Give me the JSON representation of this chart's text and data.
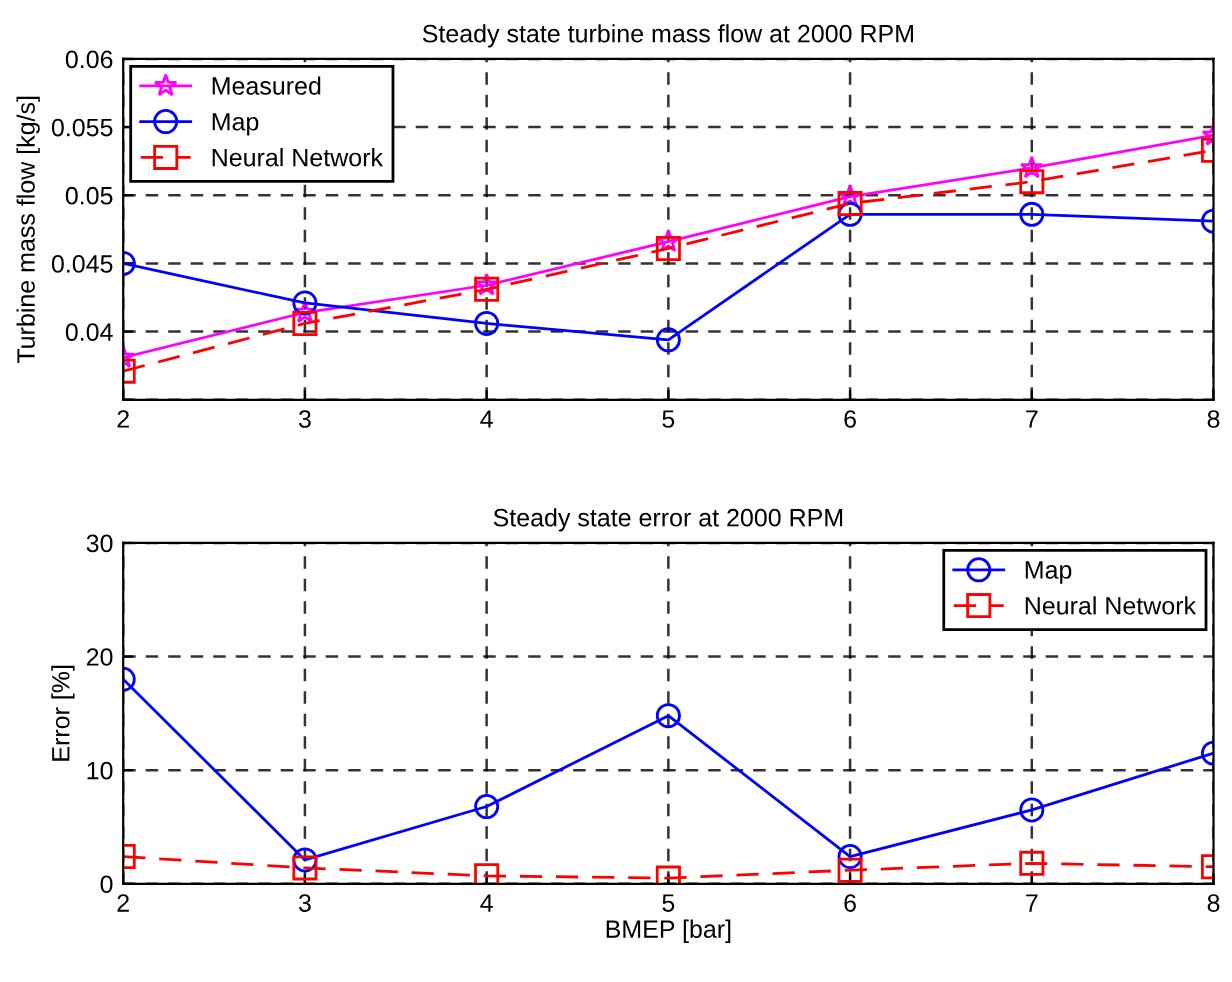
{
  "chart_data": [
    {
      "type": "line",
      "title": "Steady state turbine mass flow at 2000 RPM",
      "ylabel": "Turbine mass flow [kg/s]",
      "x": [
        2,
        3,
        4,
        5,
        6,
        7,
        8
      ],
      "xlim": [
        2,
        8
      ],
      "xticks": [
        2,
        3,
        4,
        5,
        6,
        7,
        8
      ],
      "ylim": [
        0.035,
        0.06
      ],
      "yticks": [
        {
          "value": 0.035,
          "label": null
        },
        0.04,
        0.045,
        0.05,
        0.055,
        0.06
      ],
      "grid": true,
      "legend": "top left",
      "series": [
        {
          "name": "Measured",
          "color": "#ff00ff",
          "marker": "star",
          "line_style": "solid",
          "values": [
            0.0381,
            0.0414,
            0.0434,
            0.0466,
            0.0499,
            0.052,
            0.0544
          ]
        },
        {
          "name": "Map",
          "color": "#0000ff",
          "marker": "circle",
          "line_style": "solid",
          "values": [
            0.045,
            0.0421,
            0.0406,
            0.0394,
            0.0486,
            0.0486,
            0.0481
          ]
        },
        {
          "name": "Neural Network",
          "color": "#ff0000",
          "marker": "square",
          "line_style": "dashed",
          "values": [
            0.0371,
            0.0406,
            0.0431,
            0.0461,
            0.0494,
            0.051,
            0.0533
          ]
        }
      ]
    },
    {
      "type": "line",
      "title": "Steady state error at 2000 RPM",
      "xlabel": "BMEP [bar]",
      "ylabel": "Error [%]",
      "x": [
        2,
        3,
        4,
        5,
        6,
        7,
        8
      ],
      "xlim": [
        2,
        8
      ],
      "xticks": [
        2,
        3,
        4,
        5,
        6,
        7,
        8
      ],
      "ylim": [
        0,
        30
      ],
      "yticks": [
        0,
        10,
        20,
        30
      ],
      "grid": true,
      "legend": "top right",
      "series": [
        {
          "name": "Map",
          "color": "#0000ff",
          "marker": "circle",
          "line_style": "solid",
          "values": [
            18.0,
            2.1,
            6.8,
            14.8,
            2.4,
            6.5,
            11.5
          ]
        },
        {
          "name": "Neural Network",
          "color": "#ff0000",
          "marker": "square",
          "line_style": "dashed",
          "values": [
            2.4,
            1.4,
            0.7,
            0.5,
            1.2,
            1.8,
            1.5
          ]
        }
      ]
    }
  ]
}
